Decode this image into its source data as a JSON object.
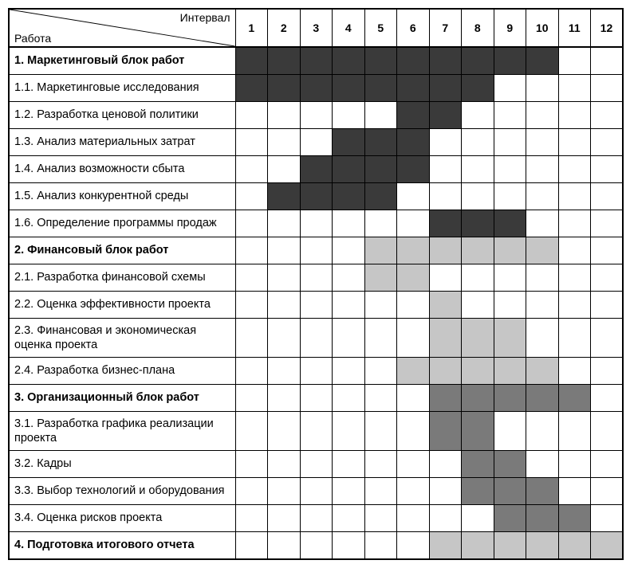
{
  "gantt": {
    "type": "gantt-table",
    "header": {
      "interval_label": "Интервал",
      "task_label": "Работа",
      "intervals": [
        "1",
        "2",
        "3",
        "4",
        "5",
        "6",
        "7",
        "8",
        "9",
        "10",
        "11",
        "12"
      ]
    },
    "colors": {
      "dark": "#3a3a3a",
      "medium": "#7a7a7a",
      "light": "#c6c6c6",
      "empty": "#ffffff",
      "border": "#000000"
    },
    "row_height_normal": 34,
    "row_height_tall": 44,
    "task_col_width": 284,
    "interval_col_width": 40.5,
    "font_size_label": 14.5,
    "font_size_header": 14,
    "rows": [
      {
        "label": "1. Маркетинговый блок работ",
        "bold": true,
        "fill": "dark",
        "span": [
          1,
          10
        ],
        "tall": false
      },
      {
        "label": "1.1. Маркетинговые исследования",
        "bold": false,
        "fill": "dark",
        "span": [
          1,
          8
        ],
        "tall": false
      },
      {
        "label": "1.2. Разработка ценовой политики",
        "bold": false,
        "fill": "dark",
        "span": [
          6,
          7
        ],
        "tall": false
      },
      {
        "label": "1.3. Анализ материальных затрат",
        "bold": false,
        "fill": "dark",
        "span": [
          4,
          6
        ],
        "tall": false
      },
      {
        "label": "1.4. Анализ возможности сбыта",
        "bold": false,
        "fill": "dark",
        "span": [
          3,
          6
        ],
        "tall": false
      },
      {
        "label": "1.5. Анализ конкурентной среды",
        "bold": false,
        "fill": "dark",
        "span": [
          2,
          5
        ],
        "tall": false
      },
      {
        "label": "1.6. Определение программы продаж",
        "bold": false,
        "fill": "dark",
        "span": [
          7,
          9
        ],
        "tall": false
      },
      {
        "label": "2. Финансовый блок работ",
        "bold": true,
        "fill": "light",
        "span": [
          5,
          10
        ],
        "tall": false
      },
      {
        "label": "2.1. Разработка финансовой схемы",
        "bold": false,
        "fill": "light",
        "span": [
          5,
          6
        ],
        "tall": false
      },
      {
        "label": "2.2. Оценка эффективности проекта",
        "bold": false,
        "fill": "light",
        "span": [
          7,
          7
        ],
        "tall": false
      },
      {
        "label": "2.3. Финансовая и экономическая оценка проекта",
        "bold": false,
        "fill": "light",
        "span": [
          7,
          9
        ],
        "tall": true
      },
      {
        "label": "2.4. Разработка бизнес-плана",
        "bold": false,
        "fill": "light",
        "span": [
          6,
          10
        ],
        "tall": false
      },
      {
        "label": "3. Организационный блок работ",
        "bold": true,
        "fill": "medium",
        "span": [
          7,
          11
        ],
        "tall": false
      },
      {
        "label": "3.1. Разработка графика реализации проекта",
        "bold": false,
        "fill": "medium",
        "span": [
          7,
          8
        ],
        "tall": true
      },
      {
        "label": "3.2. Кадры",
        "bold": false,
        "fill": "medium",
        "span": [
          8,
          9
        ],
        "tall": false
      },
      {
        "label": "3.3. Выбор технологий и оборудования",
        "bold": false,
        "fill": "medium",
        "span": [
          8,
          10
        ],
        "tall": false
      },
      {
        "label": "3.4. Оценка рисков проекта",
        "bold": false,
        "fill": "medium",
        "span": [
          9,
          11
        ],
        "tall": false
      },
      {
        "label": "4. Подготовка итогового отчета",
        "bold": true,
        "fill": "light",
        "span": [
          7,
          12
        ],
        "tall": false
      }
    ]
  }
}
